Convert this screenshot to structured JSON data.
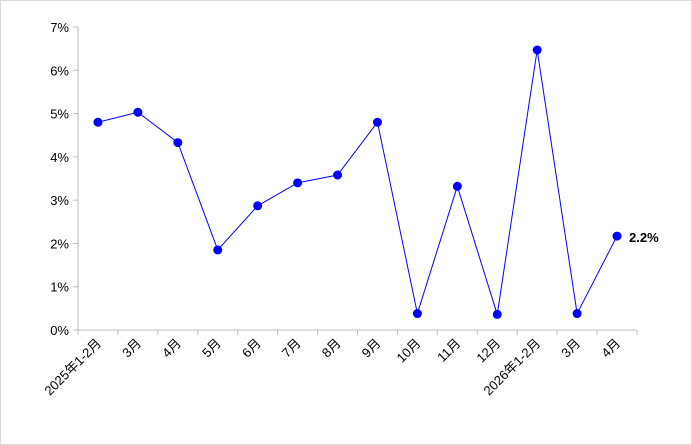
{
  "chart_data": {
    "type": "line",
    "categories": [
      "2025年1-2月",
      "3月",
      "4月",
      "5月",
      "6月",
      "7月",
      "8月",
      "9月",
      "10月",
      "11月",
      "12月",
      "2026年1-2月",
      "3月",
      "4月"
    ],
    "series": [
      {
        "color": "#0000ff",
        "values": [
          4.8,
          5.03,
          4.33,
          1.85,
          2.87,
          3.4,
          3.58,
          4.8,
          0.38,
          3.32,
          0.36,
          6.47,
          0.38,
          2.17
        ],
        "value_labels": [
          null,
          null,
          null,
          null,
          null,
          null,
          null,
          null,
          null,
          null,
          null,
          null,
          null,
          "2.2%"
        ]
      }
    ],
    "ylim": [
      0,
      7
    ],
    "yticks": [
      {
        "value": 0,
        "label": "0%"
      },
      {
        "value": 1,
        "label": "1%"
      },
      {
        "value": 2,
        "label": "2%"
      },
      {
        "value": 3,
        "label": "3%"
      },
      {
        "value": 4,
        "label": "4%"
      },
      {
        "value": 5,
        "label": "5%"
      },
      {
        "value": 6,
        "label": "6%"
      },
      {
        "value": 7,
        "label": "7%"
      }
    ],
    "grid": false
  }
}
